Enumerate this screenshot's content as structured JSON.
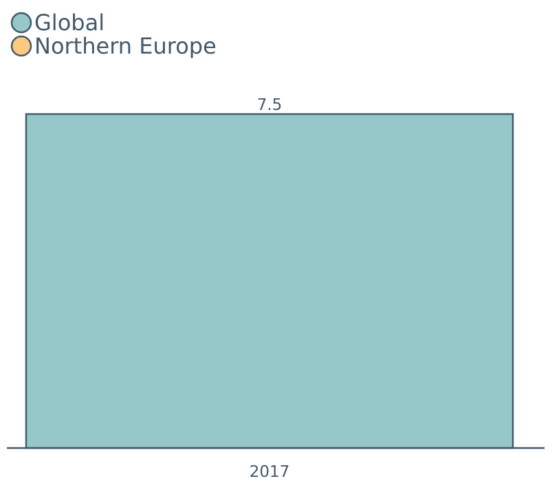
{
  "chart_data": {
    "type": "bar",
    "title": "",
    "xlabel": "",
    "ylabel": "",
    "categories": [
      "2017"
    ],
    "series": [
      {
        "name": "Global",
        "values": [
          7.5
        ],
        "color": "#96c8c9"
      },
      {
        "name": "Northern Europe",
        "values": [
          null
        ],
        "color": "#ffc97f"
      }
    ],
    "data_labels": [
      "7.5"
    ],
    "ylim": [
      0,
      7.5
    ],
    "grid": false,
    "legend_position": "top-left",
    "axis_color": "#44596a",
    "text_color": "#44596a"
  }
}
